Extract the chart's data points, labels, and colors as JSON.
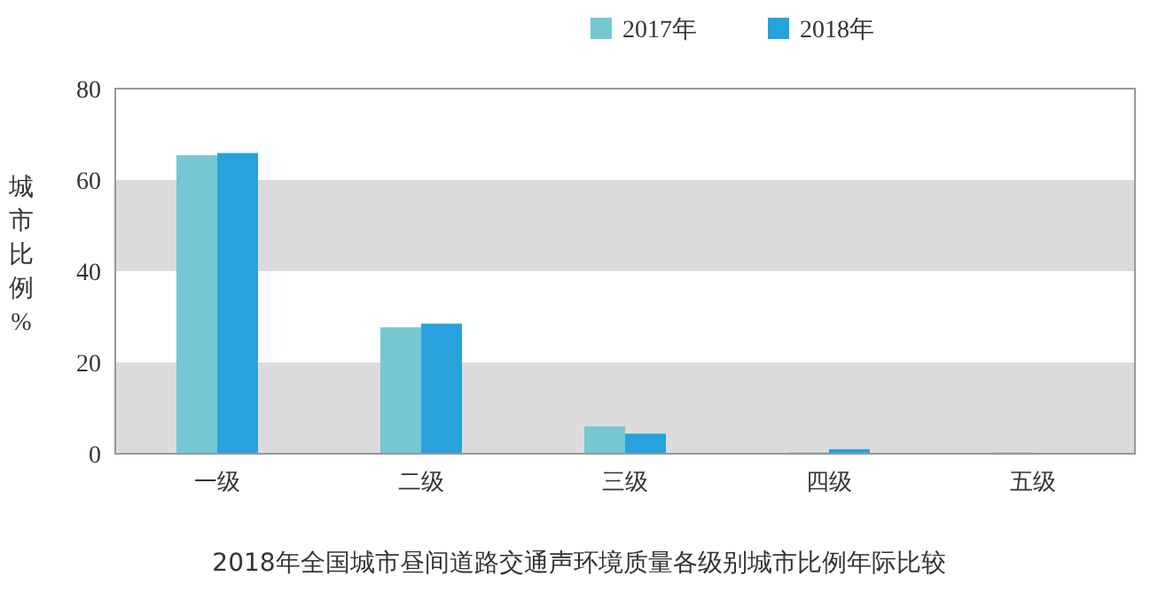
{
  "chart_data": {
    "type": "bar",
    "title": "2018年全国城市昼间道路交通声环境质量各级别城市比例年际比较",
    "ylabel": "城市比例%",
    "categories": [
      "一级",
      "二级",
      "三级",
      "四级",
      "五级"
    ],
    "series": [
      {
        "name": "2017年",
        "color": "#74c7d3",
        "values": [
          65.4,
          27.7,
          6.0,
          0.3,
          0.3
        ]
      },
      {
        "name": "2018年",
        "color": "#27a2dc",
        "values": [
          65.9,
          28.5,
          4.4,
          1.0,
          0
        ]
      }
    ],
    "ylim": [
      0,
      80
    ],
    "yticks": [
      0,
      20,
      40,
      60,
      80
    ],
    "bands": [
      {
        "axis": "y",
        "from": 0,
        "to": 20,
        "color": "#dcdbdc"
      },
      {
        "axis": "y",
        "from": 40,
        "to": 60,
        "color": "#dcdbdc"
      }
    ],
    "legend": "top",
    "grid": false
  }
}
